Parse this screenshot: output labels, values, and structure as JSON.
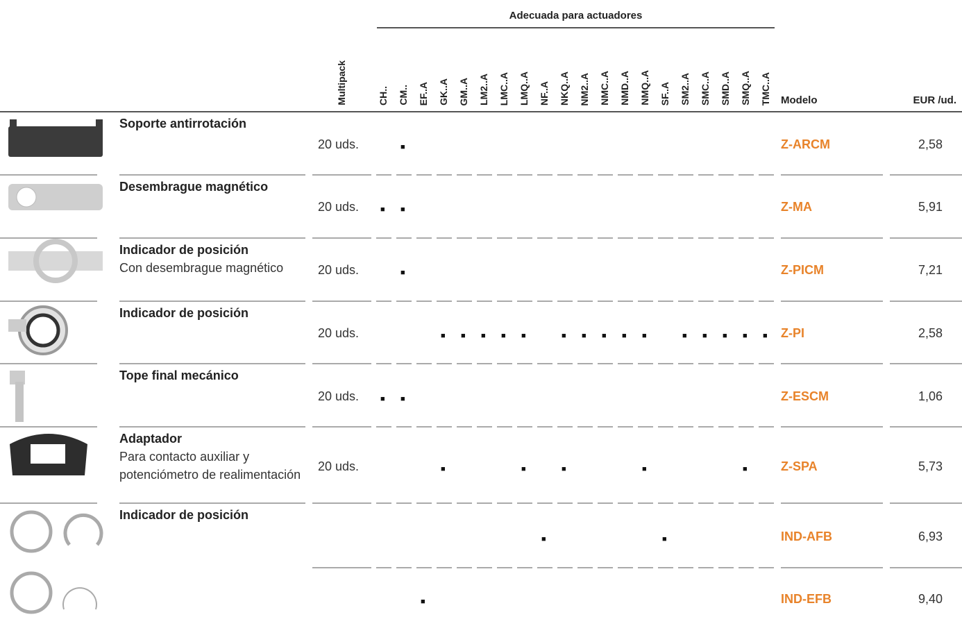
{
  "header": {
    "group_title": "Adecuada para actuadores",
    "multipack": "Multipack",
    "actuators": [
      "CH..",
      "CM..",
      "EF..A",
      "GK..A",
      "GM..A",
      "LM2..A",
      "LMC..A",
      "LMQ..A",
      "NF..A",
      "NKQ..A",
      "NM2..A",
      "NMC..A",
      "NMD..A",
      "NMQ..A",
      "SF..A",
      "SM2..A",
      "SMC..A",
      "SMD..A",
      "SMQ..A",
      "TMC..A"
    ],
    "model": "Modelo",
    "price": "EUR /ud."
  },
  "rows": [
    {
      "name": "Soporte antirrotación",
      "multipack": "20 uds.",
      "fit": [
        null,
        "■",
        null,
        null,
        null,
        null,
        null,
        null,
        null,
        null,
        null,
        null,
        null,
        null,
        null,
        null,
        null,
        null,
        null,
        null
      ],
      "model": "Z-ARCM",
      "price": "2,58"
    },
    {
      "name": "Desembrague magnético",
      "multipack": "20 uds.",
      "fit": [
        "■",
        "■",
        null,
        null,
        null,
        null,
        null,
        null,
        null,
        null,
        null,
        null,
        null,
        null,
        null,
        null,
        null,
        null,
        null,
        null
      ],
      "model": "Z-MA",
      "price": "5,91"
    },
    {
      "name": "Indicador de posición",
      "subtitle": "Con desembrague magnético",
      "multipack": "20 uds.",
      "fit": [
        null,
        "■",
        null,
        null,
        null,
        null,
        null,
        null,
        null,
        null,
        null,
        null,
        null,
        null,
        null,
        null,
        null,
        null,
        null,
        null
      ],
      "model": "Z-PICM",
      "price": "7,21"
    },
    {
      "name": "Indicador de posición",
      "multipack": "20 uds.",
      "fit": [
        null,
        null,
        null,
        "■",
        "■",
        "■",
        "■",
        "■",
        null,
        "■",
        "■",
        "■",
        "■",
        "■",
        null,
        "■",
        "■",
        "■",
        "■",
        "■"
      ],
      "model": "Z-PI",
      "price": "2,58"
    },
    {
      "name": "Tope final mecánico",
      "multipack": "20 uds.",
      "fit": [
        "■",
        "■",
        null,
        null,
        null,
        null,
        null,
        null,
        null,
        null,
        null,
        null,
        null,
        null,
        null,
        null,
        null,
        null,
        null,
        null
      ],
      "model": "Z-ESCM",
      "price": "1,06"
    },
    {
      "name": "Adaptador",
      "subtitle": "Para contacto auxiliar y potenciómetro de realimentación",
      "multipack": "20 uds.",
      "fit": [
        null,
        null,
        null,
        "■",
        null,
        null,
        null,
        "■",
        null,
        "■",
        null,
        null,
        null,
        "■",
        null,
        null,
        null,
        null,
        "■",
        null
      ],
      "model": "Z-SPA",
      "price": "5,73"
    },
    {
      "name": "Indicador de posición",
      "fit": [
        null,
        null,
        null,
        null,
        null,
        null,
        null,
        null,
        "■",
        null,
        null,
        null,
        null,
        null,
        "■",
        null,
        null,
        null,
        null,
        null
      ],
      "model": "IND-AFB",
      "price": "6,93"
    },
    {
      "fit": [
        null,
        null,
        "■",
        null,
        null,
        null,
        null,
        null,
        null,
        null,
        null,
        null,
        null,
        null,
        null,
        null,
        null,
        null,
        null,
        null
      ],
      "model": "IND-EFB",
      "price": "9,40"
    }
  ]
}
